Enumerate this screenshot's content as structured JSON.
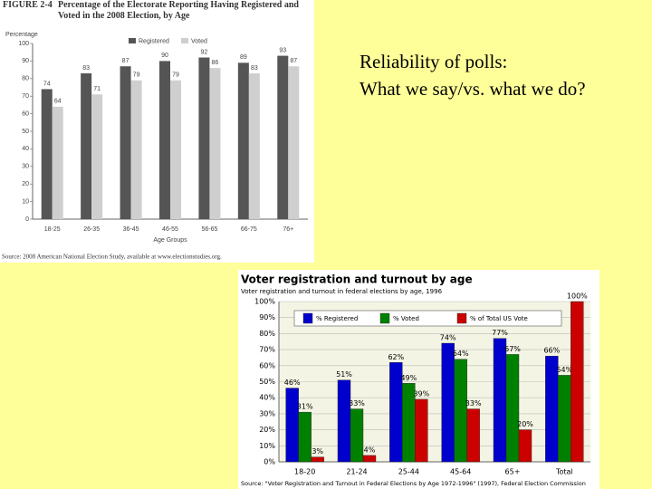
{
  "slide": {
    "text_lines": [
      "Reliability of polls:",
      "What we say/vs. what we do?"
    ]
  },
  "chart_data": [
    {
      "type": "bar",
      "figure_label": "FIGURE 2-4",
      "title": "Percentage of the Electorate Reporting Having Registered and Voted in the 2008 Election, by Age",
      "y_label": "Percentage",
      "x_label": "Age Groups",
      "source": "Source: 2008 American National Election Study, available at www.electionstudies.org.",
      "categories": [
        "18-25",
        "26-35",
        "36-45",
        "46-55",
        "56-65",
        "66-75",
        "76+"
      ],
      "series": [
        {
          "name": "Registered",
          "color": "#555555",
          "values": [
            74,
            83,
            87,
            90,
            92,
            89,
            93
          ]
        },
        {
          "name": "Voted",
          "color": "#cfcfcf",
          "values": [
            64,
            71,
            79,
            79,
            86,
            83,
            87
          ]
        }
      ],
      "ylim": [
        0,
        100
      ],
      "yticks": [
        0,
        10,
        20,
        30,
        40,
        50,
        60,
        70,
        80,
        90,
        100
      ],
      "grid": false,
      "legend": "top"
    },
    {
      "type": "bar",
      "title": "Voter registration and turnout by age",
      "subtitle": "Voter registration and turnout in federal elections by age, 1996",
      "source": "Source: \"Voter Registration and Turnout in Federal Elections by Age 1972-1996\" (1997), Federal Election Commission",
      "categories": [
        "18-20",
        "21-24",
        "25-44",
        "45-64",
        "65+",
        "Total"
      ],
      "series": [
        {
          "name": "% Registered",
          "color": "#0000cc",
          "values": [
            46,
            51,
            62,
            74,
            77,
            66
          ],
          "value_labels": [
            "46%",
            "51%",
            "62%",
            "74%",
            "77%",
            "66%"
          ]
        },
        {
          "name": "% Voted",
          "color": "#008000",
          "values": [
            31,
            33,
            49,
            64,
            67,
            54
          ],
          "value_labels": [
            "31%",
            "33%",
            "49%",
            "64%",
            "67%",
            "54%"
          ]
        },
        {
          "name": "% of Total US Vote",
          "color": "#cc0000",
          "values": [
            3,
            4,
            39,
            33,
            20,
            100
          ],
          "value_labels": [
            "3%",
            "4%",
            "39%",
            "33%",
            "20%",
            "100%"
          ]
        }
      ],
      "ylim": [
        0,
        100
      ],
      "yticks": [
        {
          "value": 0,
          "label": "0%"
        },
        {
          "value": 10,
          "label": "10%"
        },
        {
          "value": 20,
          "label": "20%"
        },
        {
          "value": 30,
          "label": "30%"
        },
        {
          "value": 40,
          "label": "40%"
        },
        {
          "value": 50,
          "label": "50%"
        },
        {
          "value": 60,
          "label": "60%"
        },
        {
          "value": 70,
          "label": "70%"
        },
        {
          "value": 80,
          "label": "80%"
        },
        {
          "value": 90,
          "label": "90%"
        },
        {
          "value": 100,
          "label": "100%"
        }
      ],
      "grid": true,
      "legend": "top"
    }
  ]
}
